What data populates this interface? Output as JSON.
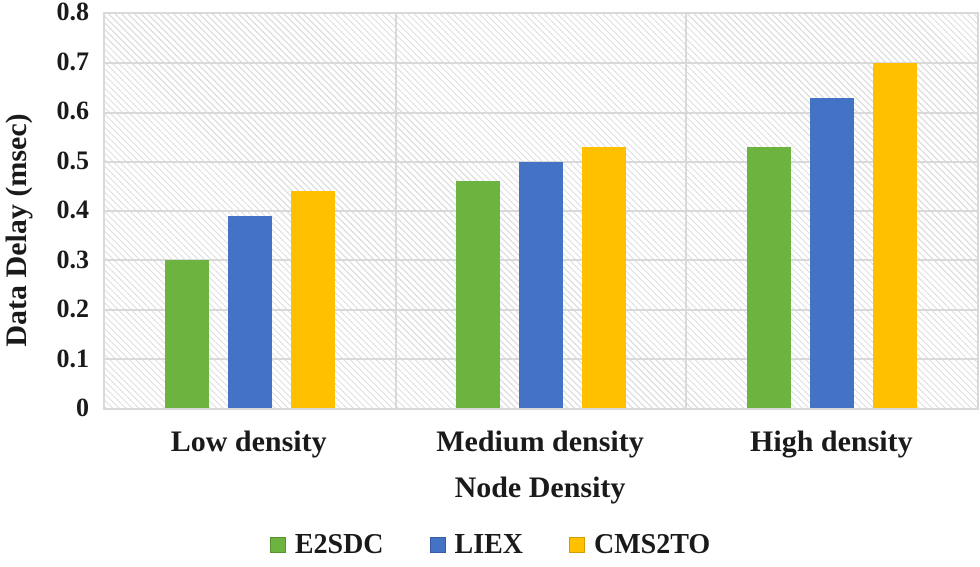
{
  "figure": {
    "background_color": "#ffffff",
    "grid_color": "#d9d9d9",
    "plot_background": "white with light gray diagonal hatch pattern"
  },
  "chart_data": {
    "type": "bar",
    "title": "",
    "xlabel": "Node Density",
    "ylabel": "Data Delay (msec)",
    "ylim": [
      0,
      0.8
    ],
    "ytick_step": 0.1,
    "yticks": [
      "0",
      "0.1",
      "0.2",
      "0.3",
      "0.4",
      "0.5",
      "0.6",
      "0.7",
      "0.8"
    ],
    "categories": [
      "Low density",
      "Medium density",
      "High density"
    ],
    "series": [
      {
        "name": "E2SDC",
        "color": "#6CB33F",
        "values": [
          0.3,
          0.46,
          0.53
        ]
      },
      {
        "name": "LIEX",
        "color": "#4472C4",
        "values": [
          0.39,
          0.5,
          0.63
        ]
      },
      {
        "name": "CMS2TO",
        "color": "#FFC000",
        "values": [
          0.44,
          0.53,
          0.7
        ]
      }
    ],
    "grid": true,
    "category_separators": true,
    "legend_position": "bottom"
  }
}
